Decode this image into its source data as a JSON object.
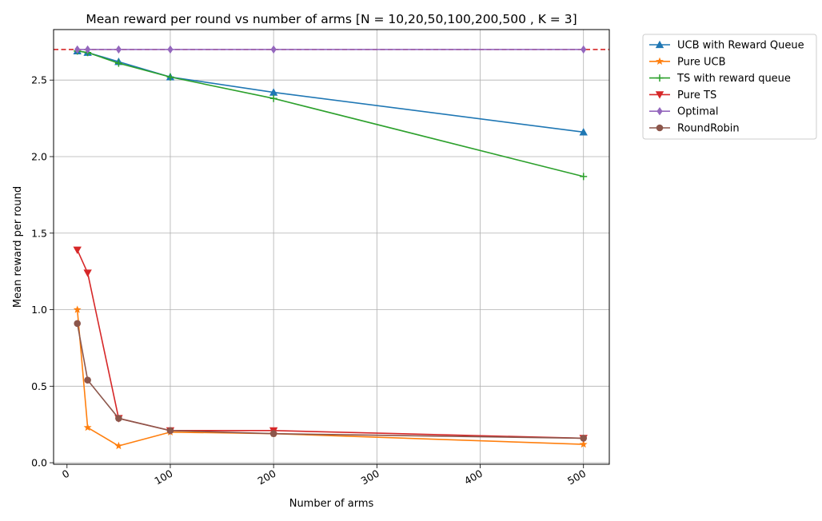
{
  "chart_data": {
    "type": "line",
    "title": "Mean reward per round vs number of arms [N = 10,20,50,100,200,500 , K = 3]",
    "xlabel": "Number of arms",
    "ylabel": "Mean reward per round",
    "x": [
      10,
      20,
      50,
      100,
      200,
      500
    ],
    "xlim": [
      -13,
      525
    ],
    "ylim": [
      -0.01,
      2.83
    ],
    "xticks": [
      0,
      100,
      200,
      300,
      400,
      500
    ],
    "xtick_labels": [
      "0",
      "100",
      "200",
      "300",
      "400",
      "500"
    ],
    "yticks": [
      0.0,
      0.5,
      1.0,
      1.5,
      2.0,
      2.5
    ],
    "ytick_labels": [
      "0.0",
      "0.5",
      "1.0",
      "1.5",
      "2.0",
      "2.5"
    ],
    "grid": true,
    "legend_position": "outside top-right",
    "reference_line": {
      "y": 2.7,
      "color": "#d62728",
      "style": "dashed"
    },
    "series": [
      {
        "name": "UCB with Reward Queue",
        "color": "#1f77b4",
        "marker": "triangle-up",
        "values": [
          2.69,
          2.68,
          2.62,
          2.52,
          2.42,
          2.16
        ]
      },
      {
        "name": "Pure UCB",
        "color": "#ff7f0e",
        "marker": "star",
        "values": [
          1.0,
          0.23,
          0.11,
          0.2,
          0.19,
          0.12
        ]
      },
      {
        "name": "TS with reward queue",
        "color": "#2ca02c",
        "marker": "plus",
        "values": [
          2.69,
          2.68,
          2.61,
          2.52,
          2.38,
          1.87
        ]
      },
      {
        "name": "Pure TS",
        "color": "#d62728",
        "marker": "triangle-down",
        "values": [
          1.39,
          1.24,
          0.29,
          0.21,
          0.21,
          0.16
        ]
      },
      {
        "name": "Optimal",
        "color": "#9467bd",
        "marker": "diamond",
        "values": [
          2.7,
          2.7,
          2.7,
          2.7,
          2.7,
          2.7
        ]
      },
      {
        "name": "RoundRobin",
        "color": "#8c564b",
        "marker": "circle",
        "values": [
          0.91,
          0.54,
          0.29,
          0.21,
          0.19,
          0.16
        ]
      }
    ]
  }
}
